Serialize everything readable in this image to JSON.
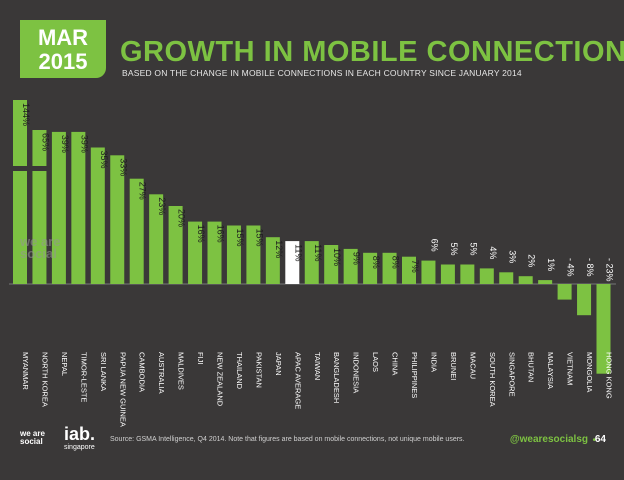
{
  "header": {
    "month": "MAR",
    "year": "2015",
    "title": "GROWTH IN MOBILE CONNECTIONS",
    "subtitle": "BASED ON THE CHANGE IN MOBILE CONNECTIONS IN EACH COUNTRY SINCE JANUARY 2014"
  },
  "watermark": "we are social",
  "footer": {
    "logo_text": "we are social",
    "iab_text": "iab.",
    "iab_sub": "singapore",
    "source": "Source: GSMA Intelligence, Q4 2014. Note that figures are based on mobile connections, not unique mobile users.",
    "handle": "@wearesocialsg",
    "page": "64"
  },
  "colors": {
    "accent": "#7dc242",
    "highlight": "#ffffff",
    "background": "#3a3838"
  },
  "chart_data": {
    "type": "bar",
    "categories": [
      "MYANMAR",
      "NORTH KOREA",
      "NEPAL",
      "TIMOR-LESTE",
      "SRI LANKA",
      "PAPUA NEW GUINEA",
      "CAMBODIA",
      "AUSTRALIA",
      "MALDIVES",
      "FIJI",
      "NEW ZEALAND",
      "THAILAND",
      "PAKISTAN",
      "JAPAN",
      "APAC AVERAGE",
      "TAIWAN",
      "BANGLADESH",
      "INDONESIA",
      "LAOS",
      "CHINA",
      "PHILIPPINES",
      "INDIA",
      "BRUNEI",
      "MACAU",
      "SOUTH KOREA",
      "SINGAPORE",
      "BHUTAN",
      "MALAYSIA",
      "VIETNAM",
      "MONGOLIA",
      "HONG KONG"
    ],
    "values": [
      144,
      65,
      39,
      39,
      35,
      33,
      27,
      23,
      20,
      16,
      16,
      15,
      15,
      12,
      11,
      11,
      10,
      9,
      8,
      8,
      7,
      6,
      5,
      5,
      4,
      3,
      2,
      1,
      -4,
      -8,
      -23
    ],
    "labels": [
      "144%",
      "65%",
      "39%",
      "39%",
      "35%",
      "33%",
      "27%",
      "23%",
      "20%",
      "16%",
      "16%",
      "15%",
      "15%",
      "12%",
      "11%",
      "11%",
      "10%",
      "9%",
      "8%",
      "8%",
      "7%",
      "6%",
      "5%",
      "5%",
      "4%",
      "3%",
      "2%",
      "1%",
      "- 4%",
      "- 8%",
      "- 23%"
    ],
    "highlight_index": 14,
    "broken_bars": [
      0,
      1
    ]
  }
}
